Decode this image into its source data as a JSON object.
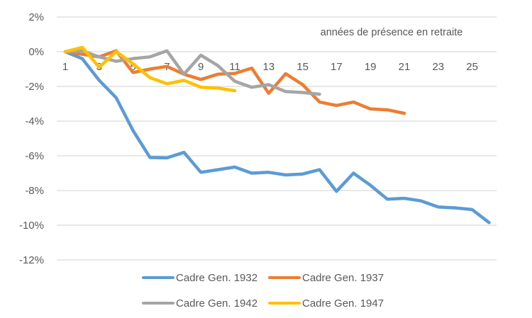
{
  "chart_data": {
    "type": "line",
    "title": "",
    "xlabel": "années de présence en retraite",
    "ylabel": "",
    "x": [
      1,
      2,
      3,
      4,
      5,
      6,
      7,
      8,
      9,
      10,
      11,
      12,
      13,
      14,
      15,
      16,
      17,
      18,
      19,
      20,
      21,
      22,
      23,
      24,
      25,
      26
    ],
    "x_tick_labels": [
      "1",
      "3",
      "5",
      "7",
      "9",
      "11",
      "13",
      "15",
      "17",
      "19",
      "21",
      "23",
      "25"
    ],
    "x_tick_values": [
      1,
      3,
      5,
      7,
      9,
      11,
      13,
      15,
      17,
      19,
      21,
      23,
      25
    ],
    "y_tick_labels": [
      "2%",
      "0%",
      "-2%",
      "-4%",
      "-6%",
      "-8%",
      "-10%",
      "-12%"
    ],
    "y_tick_values": [
      2,
      0,
      -2,
      -4,
      -6,
      -8,
      -10,
      -12
    ],
    "ylim": [
      -12,
      2
    ],
    "xlim": [
      1,
      26
    ],
    "grid": true,
    "legend_position": "bottom",
    "y_unit": "%",
    "series": [
      {
        "name": "Cadre Gen. 1932",
        "color": "#5b9bd5",
        "values": [
          0,
          -0.4,
          -1.65,
          -2.65,
          -4.55,
          -6.1,
          -6.12,
          -5.8,
          -6.95,
          -6.8,
          -6.65,
          -7.0,
          -6.95,
          -7.1,
          -7.05,
          -6.8,
          -8.05,
          -7.0,
          -7.7,
          -8.5,
          -8.45,
          -8.6,
          -8.95,
          -9.0,
          -9.1,
          -9.85
        ]
      },
      {
        "name": "Cadre Gen. 1937",
        "color": "#ed7d31",
        "values": [
          0,
          -0.15,
          -0.3,
          0.05,
          -1.2,
          -1.0,
          -0.85,
          -1.3,
          -1.6,
          -1.3,
          -1.25,
          -0.95,
          -2.4,
          -1.27,
          -1.9,
          -2.9,
          -3.1,
          -2.9,
          -3.3,
          -3.35,
          -3.55
        ]
      },
      {
        "name": "Cadre Gen. 1942",
        "color": "#a5a5a5",
        "values": [
          0,
          0.05,
          -0.3,
          -0.55,
          -0.4,
          -0.3,
          0.05,
          -1.3,
          -0.2,
          -0.8,
          -1.7,
          -2.05,
          -1.9,
          -2.3,
          -2.35,
          -2.45
        ]
      },
      {
        "name": "Cadre Gen. 1947",
        "color": "#ffc000",
        "values": [
          0,
          0.25,
          -0.9,
          0.0,
          -0.7,
          -1.5,
          -1.85,
          -1.65,
          -2.05,
          -2.1,
          -2.25
        ]
      }
    ]
  }
}
